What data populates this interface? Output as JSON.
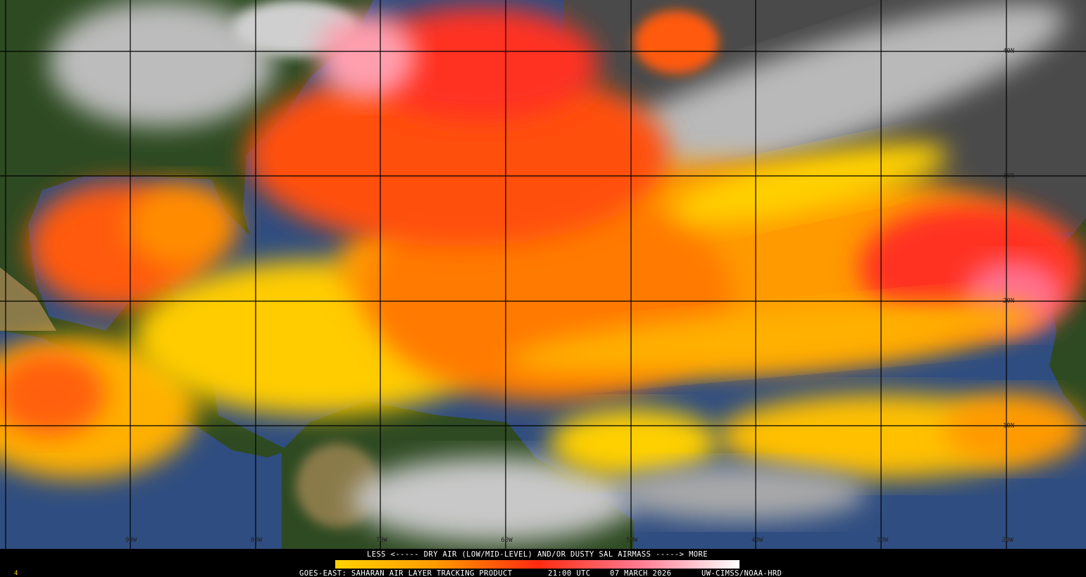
{
  "corner_label": "4",
  "colorbar": {
    "label": "LESS <----- DRY AIR (LOW/MID-LEVEL) AND/OR DUSTY SAL AIRMASS -----> MORE"
  },
  "footer": {
    "product": "GOES-EAST: SAHARAN AIR LAYER TRACKING PRODUCT",
    "time": "21:00 UTC",
    "date": "07 MARCH 2026",
    "credit": "UW-CIMSS/NOAA-HRD"
  },
  "latitude_labels": [
    "40N",
    "30N",
    "20N",
    "10N"
  ],
  "longitude_labels": [
    "90W",
    "80W",
    "70W",
    "60W",
    "50W",
    "40W",
    "30W",
    "20W"
  ]
}
